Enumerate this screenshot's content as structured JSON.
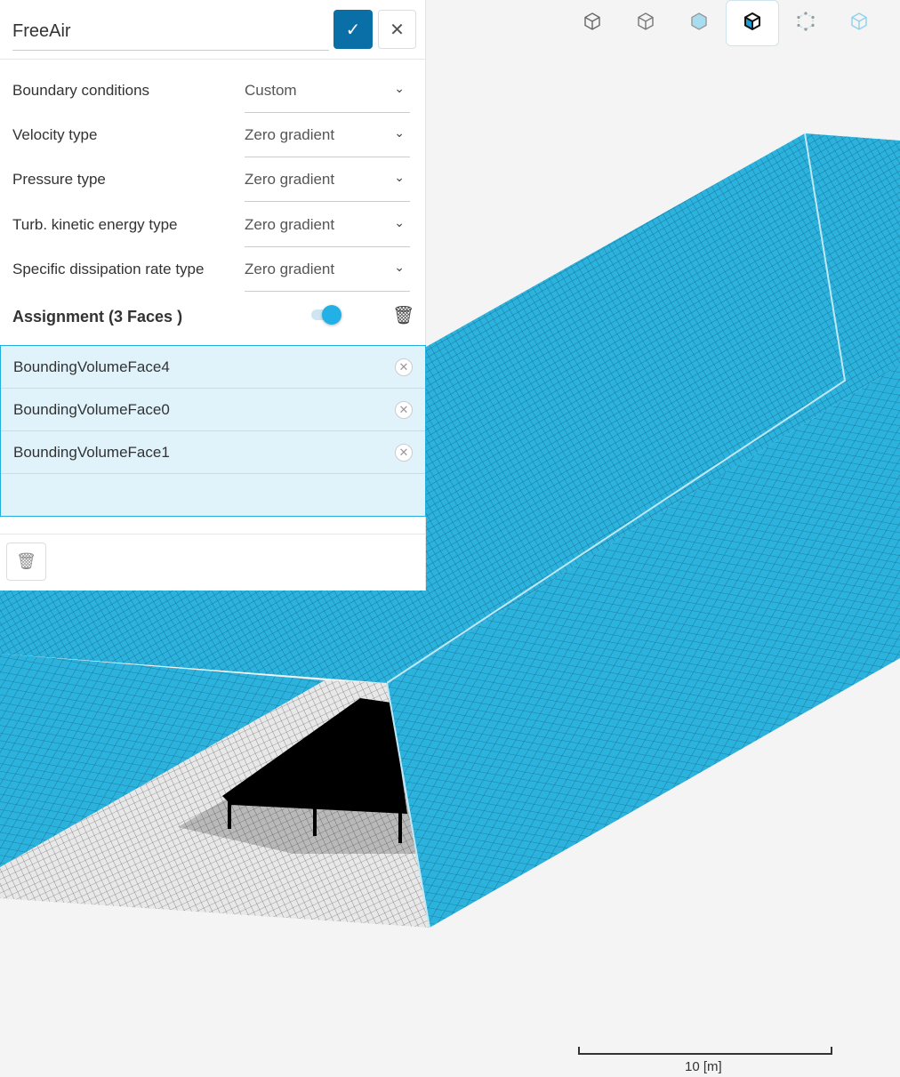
{
  "panel": {
    "name_value": "FreeAir",
    "confirm_icon": "check-icon",
    "close_icon": "close-icon",
    "fields": [
      {
        "label": "Boundary conditions",
        "value": "Custom"
      },
      {
        "label": "Velocity type",
        "value": "Zero gradient"
      },
      {
        "label": "Pressure type",
        "value": "Zero gradient"
      },
      {
        "label": "Turb. kinetic energy type",
        "value": "Zero gradient"
      },
      {
        "label": "Specific dissipation rate type",
        "value": "Zero gradient"
      }
    ],
    "assignment_label": "Assignment (3 Faces )",
    "toggle_on": true,
    "assignments": [
      "BoundingVolumeFace4",
      "BoundingVolumeFace0",
      "BoundingVolumeFace1"
    ]
  },
  "toolbar": {
    "icons": [
      "cube-outline-icon",
      "cube-plain-icon",
      "cube-solid-icon",
      "cube-selected-face-icon",
      "cube-points-icon",
      "cube-wireframe-icon"
    ],
    "active_index": 3
  },
  "scale_bar": {
    "label": "10 [m]"
  },
  "colors": {
    "accent": "#0a6fa6",
    "mesh": "#2bb2dd",
    "selection": "#e0f2fa"
  }
}
